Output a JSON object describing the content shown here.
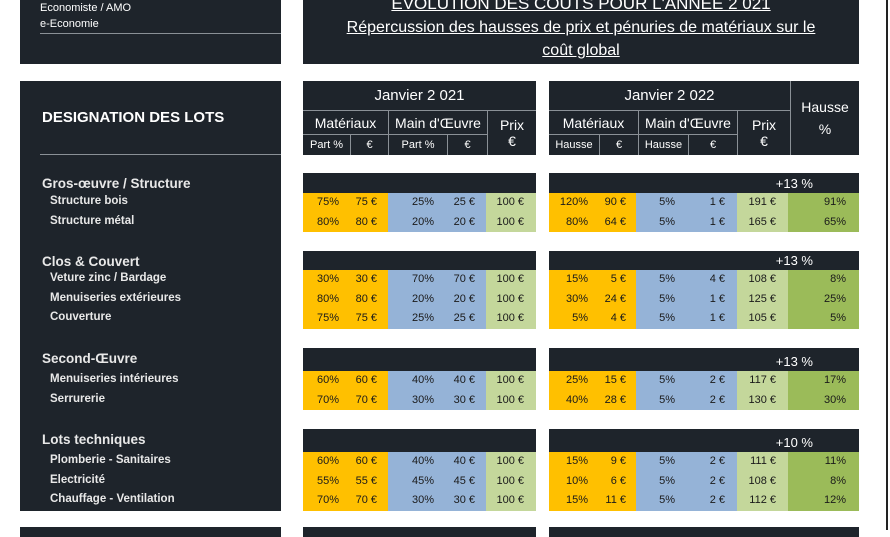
{
  "info_box": {
    "line1": "Economiste / AMO",
    "line2": "e-Economie"
  },
  "title": {
    "line1": "EVOLUTION DES COUTS POUR L'ANNEE 2 021",
    "line2": "Répercussion des hausses de prix et pénuries de matériaux sur le",
    "line3": "coût global"
  },
  "designation_header": "DESIGNATION DES LOTS",
  "header_2021": {
    "title": "Janvier 2 021",
    "materiaux": "Matériaux",
    "main_oeuvre": "Main d'Œuvre",
    "prix": "Prix",
    "prix_unit": "€",
    "part1": "Part %",
    "eur1": "€",
    "part2": "Part %",
    "eur2": "€"
  },
  "header_2022": {
    "title": "Janvier 2 022",
    "materiaux": "Matériaux",
    "main_oeuvre": "Main d'Œuvre",
    "prix": "Prix",
    "prix_unit": "€",
    "h1": "Hausse",
    "eur1": "€",
    "h2": "Hausse",
    "eur2": "€"
  },
  "hausse_header": {
    "label": "Hausse",
    "unit": "%"
  },
  "colors": {
    "dark": "#1e242b",
    "materiaux": "#ffc000",
    "main_oeuvre": "#95b3d7",
    "prix": "#c4d79b",
    "hausse": "#9bbb59"
  },
  "groups": [
    {
      "name": "Gros-œuvre / Structure",
      "total": "+13 %",
      "items": [
        {
          "label": "Structure bois",
          "y2021": [
            "75%",
            "75 €",
            "25%",
            "25 €",
            "100 €"
          ],
          "y2022": [
            "120%",
            "90 €",
            "5%",
            "1 €",
            "191 €",
            "91%"
          ]
        },
        {
          "label": "Structure métal",
          "y2021": [
            "80%",
            "80 €",
            "20%",
            "20 €",
            "100 €"
          ],
          "y2022": [
            "80%",
            "64 €",
            "5%",
            "1 €",
            "165 €",
            "65%"
          ]
        }
      ]
    },
    {
      "name": "Clos & Couvert",
      "total": "+13 %",
      "items": [
        {
          "label": "Veture zinc / Bardage",
          "y2021": [
            "30%",
            "30 €",
            "70%",
            "70 €",
            "100 €"
          ],
          "y2022": [
            "15%",
            "5 €",
            "5%",
            "4 €",
            "108 €",
            "8%"
          ]
        },
        {
          "label": "Menuiseries extérieures",
          "y2021": [
            "80%",
            "80 €",
            "20%",
            "20 €",
            "100 €"
          ],
          "y2022": [
            "30%",
            "24 €",
            "5%",
            "1 €",
            "125 €",
            "25%"
          ]
        },
        {
          "label": "Couverture",
          "y2021": [
            "75%",
            "75 €",
            "25%",
            "25 €",
            "100 €"
          ],
          "y2022": [
            "5%",
            "4 €",
            "5%",
            "1 €",
            "105 €",
            "5%"
          ]
        }
      ]
    },
    {
      "name": "Second-Œuvre",
      "total": "+13 %",
      "items": [
        {
          "label": "Menuiseries intérieures",
          "y2021": [
            "60%",
            "60 €",
            "40%",
            "40 €",
            "100 €"
          ],
          "y2022": [
            "25%",
            "15 €",
            "5%",
            "2 €",
            "117 €",
            "17%"
          ]
        },
        {
          "label": "Serrurerie",
          "y2021": [
            "70%",
            "70 €",
            "30%",
            "30 €",
            "100 €"
          ],
          "y2022": [
            "40%",
            "28 €",
            "5%",
            "2 €",
            "130 €",
            "30%"
          ]
        }
      ]
    },
    {
      "name": "Lots techniques",
      "total": "+10 %",
      "items": [
        {
          "label": "Plomberie - Sanitaires",
          "y2021": [
            "60%",
            "60 €",
            "40%",
            "40 €",
            "100 €"
          ],
          "y2022": [
            "15%",
            "9 €",
            "5%",
            "2 €",
            "111 €",
            "11%"
          ]
        },
        {
          "label": "Electricité",
          "y2021": [
            "55%",
            "55 €",
            "45%",
            "45 €",
            "100 €"
          ],
          "y2022": [
            "10%",
            "6 €",
            "5%",
            "2 €",
            "108 €",
            "8%"
          ]
        },
        {
          "label": "Chauffage - Ventilation",
          "y2021": [
            "70%",
            "70 €",
            "30%",
            "30 €",
            "100 €"
          ],
          "y2022": [
            "15%",
            "11 €",
            "5%",
            "2 €",
            "112 €",
            "12%"
          ]
        }
      ]
    }
  ]
}
